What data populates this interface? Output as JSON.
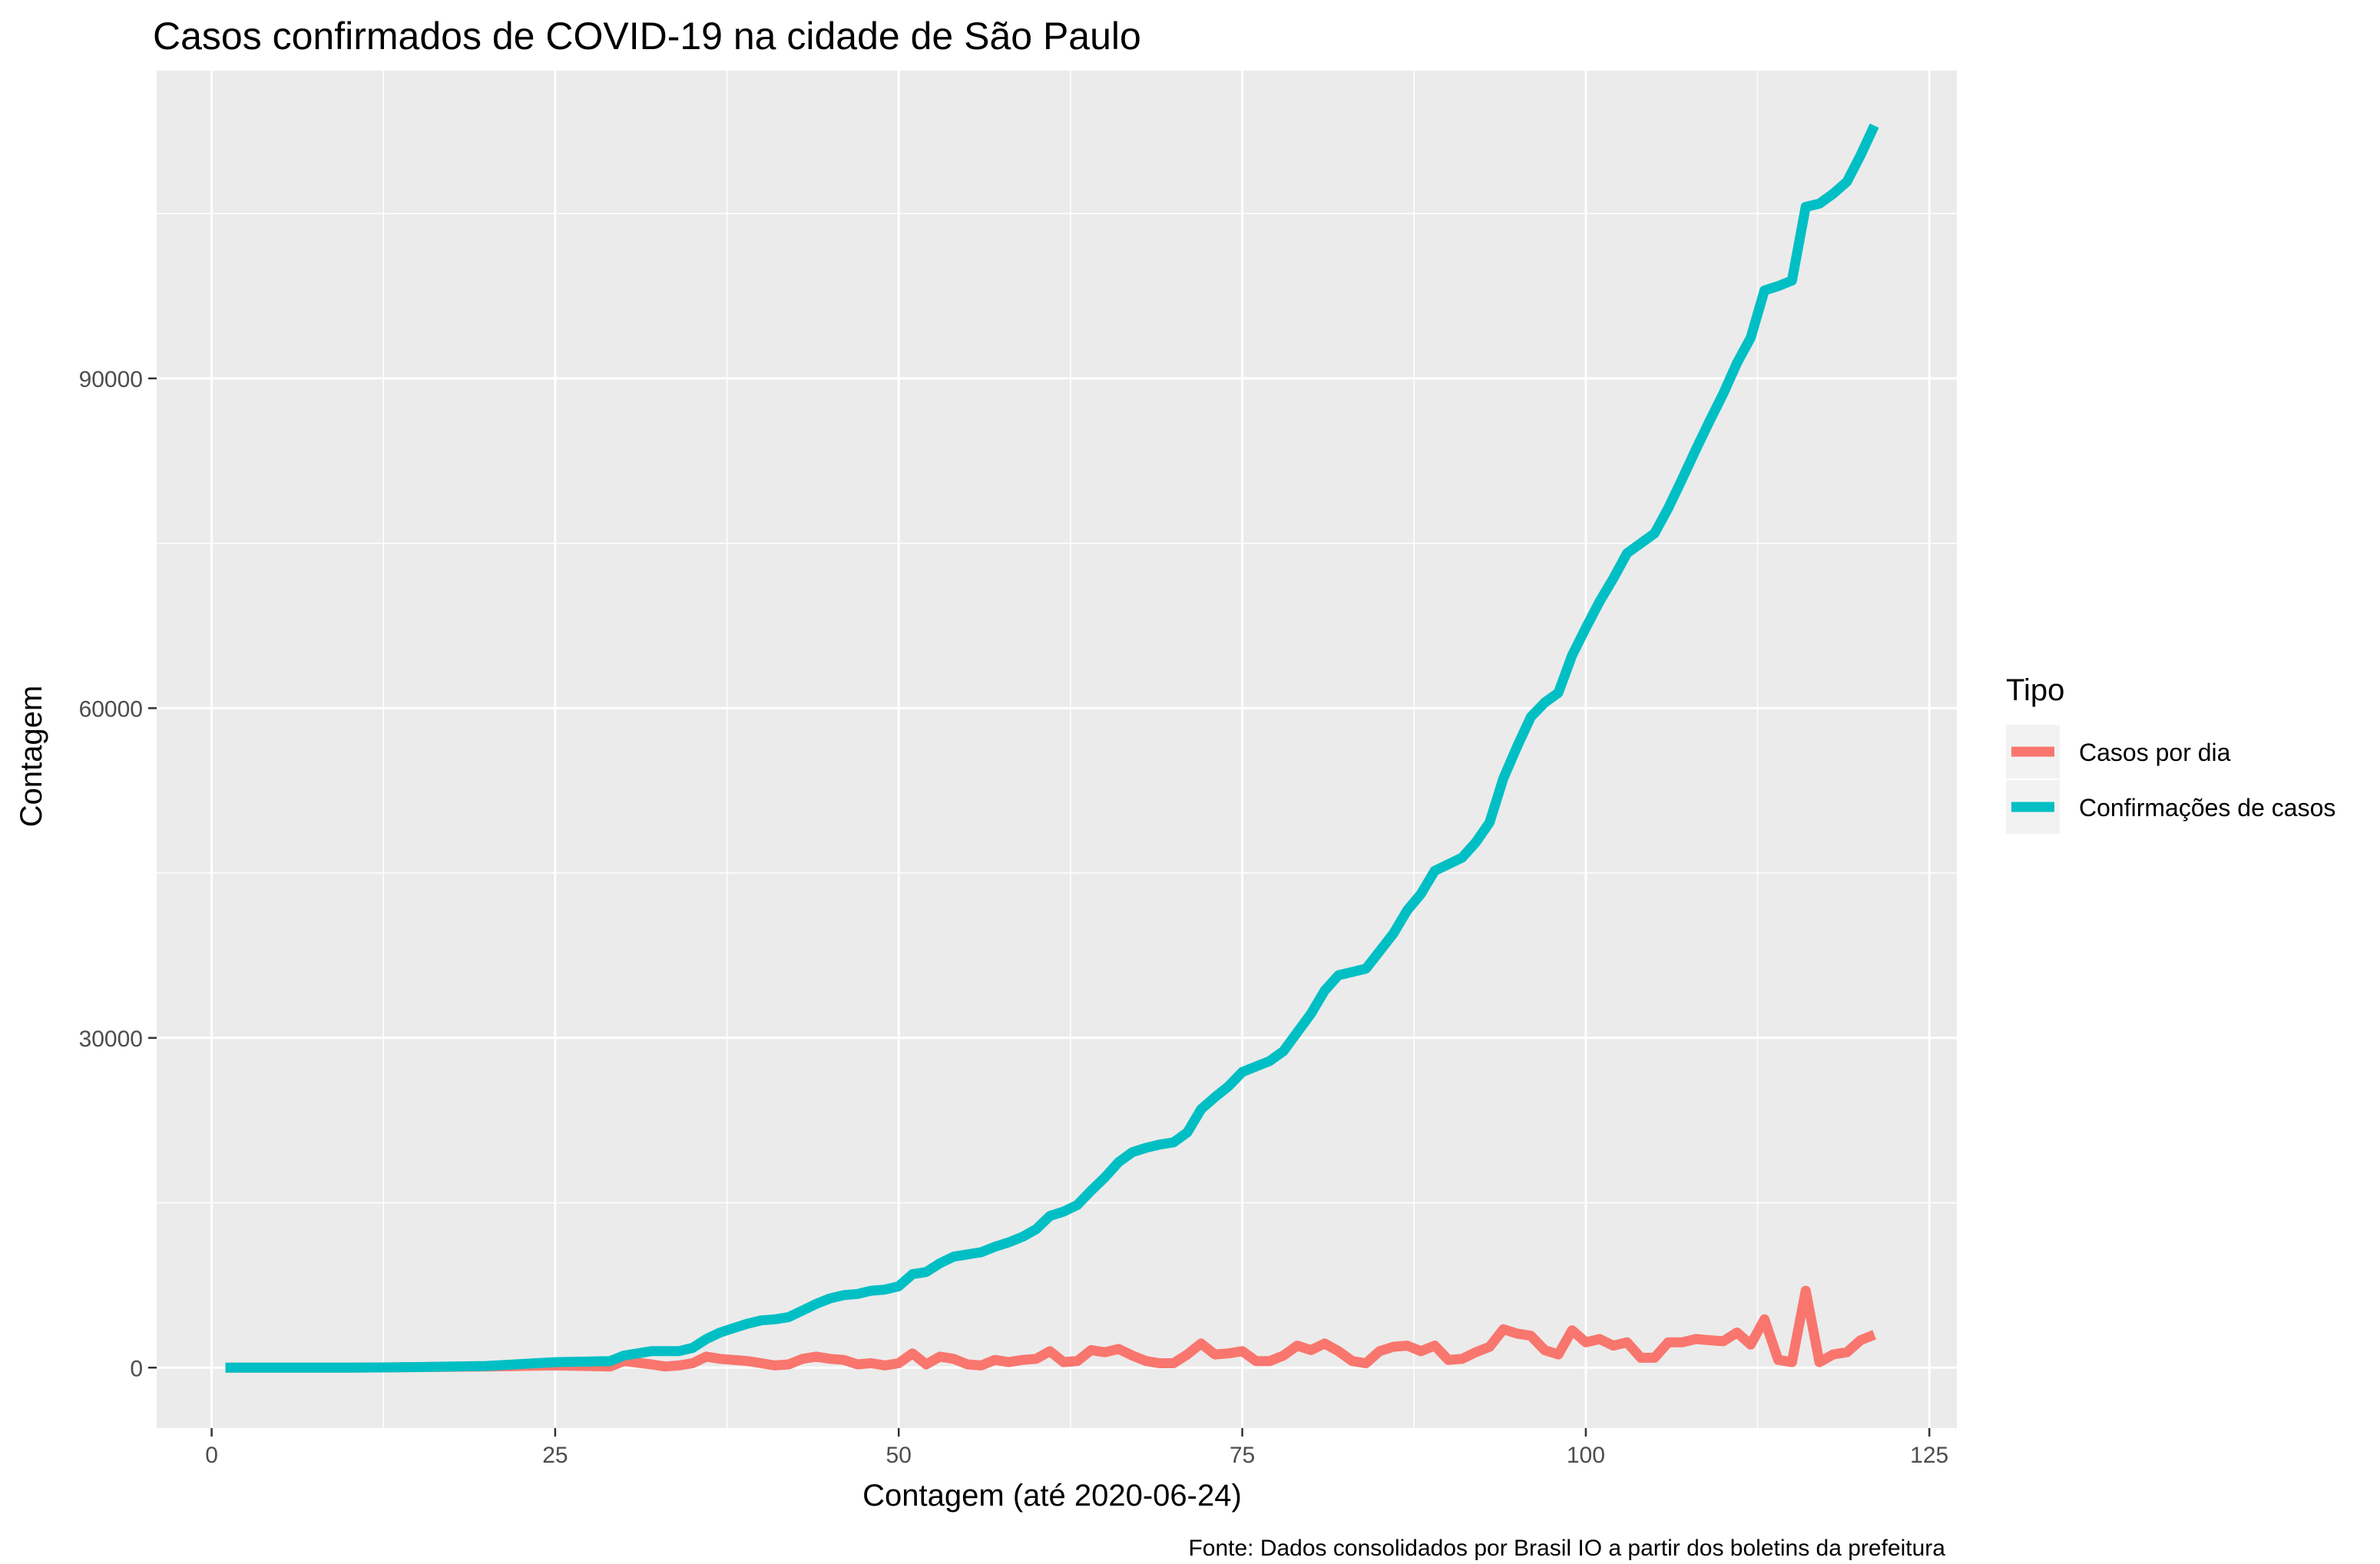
{
  "chart_data": {
    "type": "line",
    "title": "Casos confirmados de COVID-19 na cidade de São Paulo",
    "xlabel": "Contagem (até 2020-06-24)",
    "ylabel": "Contagem",
    "caption": "Fonte: Dados consolidados por Brasil IO a partir dos boletins da prefeitura",
    "xlim": [
      -4,
      127
    ],
    "ylim": [
      -5500,
      118000
    ],
    "x_ticks": [
      0,
      25,
      50,
      75,
      100,
      125
    ],
    "y_ticks": [
      0,
      30000,
      60000,
      90000
    ],
    "x_tick_labels": [
      "0",
      "25",
      "50",
      "75",
      "100",
      "125"
    ],
    "y_tick_labels": [
      "0",
      "30000",
      "60000",
      "90000"
    ],
    "grid": true,
    "legend": {
      "title": "Tipo",
      "position": "right"
    },
    "series": [
      {
        "name": "Casos por dia",
        "color": "#F8766D",
        "x": [
          1,
          10,
          20,
          25,
          29,
          30,
          32,
          33,
          34,
          35,
          36,
          37,
          39,
          40,
          41,
          42,
          43,
          44,
          45,
          46,
          47,
          48,
          49,
          50,
          51,
          52,
          53,
          54,
          55,
          56,
          57,
          58,
          59,
          60,
          61,
          62,
          63,
          64,
          65,
          66,
          67,
          68,
          69,
          70,
          71,
          72,
          73,
          74,
          75,
          76,
          77,
          78,
          79,
          80,
          81,
          82,
          83,
          84,
          85,
          86,
          87,
          88,
          89,
          90,
          91,
          92,
          93,
          94,
          95,
          96,
          97,
          98,
          99,
          100,
          101,
          102,
          103,
          104,
          105,
          106,
          107,
          108,
          109,
          110,
          111,
          112,
          113,
          114,
          115,
          116,
          117,
          118,
          119,
          120,
          121
        ],
        "y": [
          0,
          0,
          100,
          200,
          100,
          600,
          300,
          100,
          200,
          400,
          1000,
          800,
          600,
          400,
          200,
          300,
          800,
          1000,
          800,
          700,
          300,
          400,
          200,
          400,
          1300,
          300,
          1000,
          800,
          300,
          200,
          700,
          500,
          700,
          800,
          1500,
          500,
          600,
          1600,
          1400,
          1700,
          1100,
          600,
          400,
          400,
          1200,
          2200,
          1200,
          1300,
          1500,
          600,
          600,
          1100,
          2000,
          1600,
          2200,
          1500,
          600,
          400,
          1500,
          1900,
          2000,
          1500,
          2000,
          700,
          800,
          1400,
          1900,
          3500,
          3100,
          2900,
          1600,
          1200,
          3400,
          2300,
          2600,
          2000,
          2300,
          900,
          900,
          2300,
          2300,
          2600,
          2500,
          2400,
          3200,
          2100,
          4400,
          700,
          500,
          7000,
          500,
          1200,
          1400,
          2500,
          3000
        ]
      },
      {
        "name": "Confirmações de casos",
        "color": "#00BFC4",
        "x": [
          1,
          10,
          15,
          20,
          25,
          29,
          30,
          31,
          32,
          33,
          34,
          35,
          36,
          37,
          38,
          39,
          40,
          41,
          42,
          43,
          44,
          45,
          46,
          47,
          48,
          49,
          50,
          51,
          52,
          53,
          54,
          55,
          56,
          57,
          58,
          59,
          60,
          61,
          62,
          63,
          64,
          65,
          66,
          67,
          68,
          69,
          70,
          71,
          72,
          73,
          74,
          75,
          76,
          77,
          78,
          79,
          80,
          81,
          82,
          83,
          84,
          85,
          86,
          87,
          88,
          89,
          90,
          91,
          92,
          93,
          94,
          95,
          96,
          97,
          98,
          99,
          100,
          101,
          102,
          103,
          104,
          105,
          106,
          107,
          108,
          109,
          110,
          111,
          112,
          113,
          114,
          115,
          116,
          117,
          118,
          119,
          120,
          121
        ],
        "y": [
          0,
          0,
          50,
          150,
          500,
          600,
          1100,
          1300,
          1500,
          1500,
          1500,
          1800,
          2600,
          3200,
          3600,
          4000,
          4300,
          4400,
          4600,
          5200,
          5800,
          6300,
          6600,
          6700,
          7000,
          7100,
          7400,
          8500,
          8700,
          9500,
          10100,
          10300,
          10500,
          11000,
          11400,
          11900,
          12600,
          13800,
          14200,
          14800,
          16100,
          17300,
          18700,
          19600,
          20000,
          20300,
          20500,
          21400,
          23500,
          24600,
          25600,
          26900,
          27400,
          27900,
          28800,
          30500,
          32200,
          34300,
          35700,
          36000,
          36300,
          37900,
          39500,
          41600,
          43100,
          45200,
          45800,
          46400,
          47800,
          49600,
          53600,
          56500,
          59200,
          60500,
          61400,
          64800,
          67300,
          69700,
          71800,
          74100,
          75000,
          75900,
          78200,
          80800,
          83500,
          86100,
          88600,
          91400,
          93700,
          98000,
          98400,
          98900,
          105600,
          105900,
          106800,
          107900,
          110300,
          113000
        ]
      }
    ]
  }
}
